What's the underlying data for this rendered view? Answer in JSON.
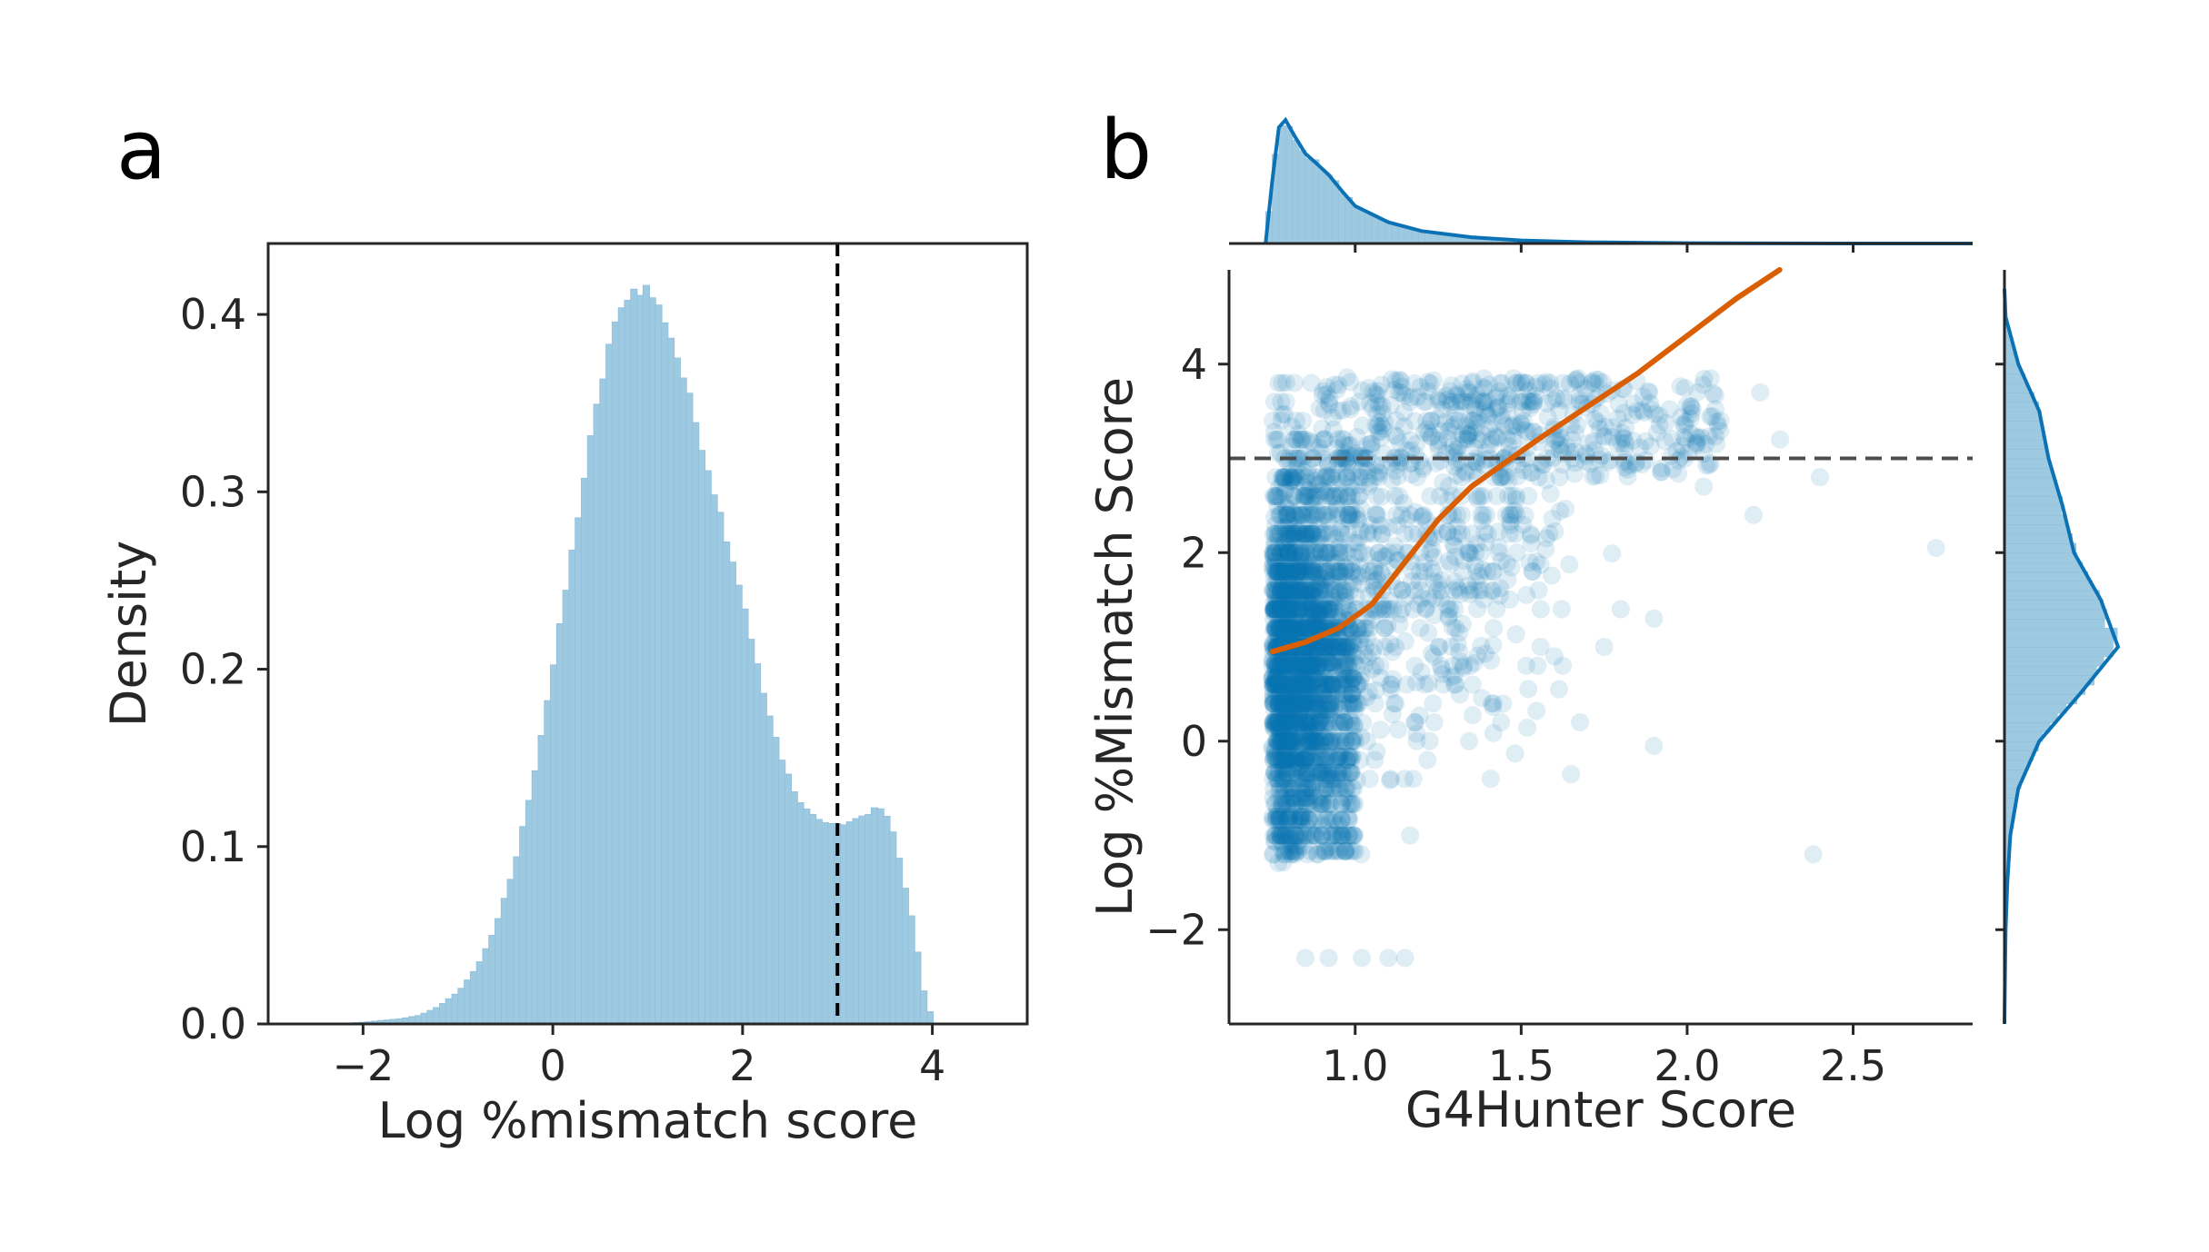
{
  "colors": {
    "hist_fill": "#9ecae1",
    "hist_edge": "#8fbfdc",
    "scatter": "#0b72b5",
    "marginal_line": "#0b72b5",
    "trend_line": "#d95f02",
    "threshold_line_a": "#000000",
    "threshold_line_b": "#4d4d4d",
    "axis": "#262626"
  },
  "panels": {
    "a_label": "a",
    "b_label": "b"
  },
  "chart_data": [
    {
      "id": "a",
      "type": "bar",
      "subtype": "histogram",
      "xlabel": "Log %mismatch score",
      "ylabel": "Density",
      "xlim": [
        -3,
        5
      ],
      "ylim": [
        0,
        0.44
      ],
      "xticks": [
        -2,
        0,
        2,
        4
      ],
      "xtick_labels": [
        "−2",
        "0",
        "2",
        "4"
      ],
      "yticks": [
        0.0,
        0.1,
        0.2,
        0.3,
        0.4
      ],
      "ytick_labels": [
        "0.0",
        "0.1",
        "0.2",
        "0.3",
        "0.4"
      ],
      "grid": false,
      "threshold_x": 3,
      "density_points": [
        [
          -2.3,
          0.0
        ],
        [
          -2.0,
          0.001
        ],
        [
          -1.6,
          0.003
        ],
        [
          -1.4,
          0.005
        ],
        [
          -1.2,
          0.01
        ],
        [
          -1.0,
          0.018
        ],
        [
          -0.8,
          0.032
        ],
        [
          -0.6,
          0.055
        ],
        [
          -0.4,
          0.09
        ],
        [
          -0.2,
          0.14
        ],
        [
          0.0,
          0.2
        ],
        [
          0.2,
          0.265
        ],
        [
          0.4,
          0.33
        ],
        [
          0.6,
          0.385
        ],
        [
          0.8,
          0.413
        ],
        [
          1.0,
          0.415
        ],
        [
          1.2,
          0.395
        ],
        [
          1.4,
          0.36
        ],
        [
          1.6,
          0.32
        ],
        [
          1.8,
          0.28
        ],
        [
          2.0,
          0.24
        ],
        [
          2.2,
          0.19
        ],
        [
          2.4,
          0.15
        ],
        [
          2.6,
          0.125
        ],
        [
          2.8,
          0.115
        ],
        [
          3.0,
          0.112
        ],
        [
          3.2,
          0.115
        ],
        [
          3.4,
          0.122
        ],
        [
          3.5,
          0.12
        ],
        [
          3.6,
          0.105
        ],
        [
          3.8,
          0.055
        ],
        [
          3.9,
          0.02
        ],
        [
          4.0,
          0.002
        ],
        [
          4.05,
          0.0
        ]
      ]
    },
    {
      "id": "b",
      "type": "scatter",
      "xlabel": "G4Hunter Score",
      "ylabel": "Log %Mismatch Score",
      "xlim": [
        0.62,
        2.86
      ],
      "ylim": [
        -3,
        5
      ],
      "xticks": [
        1.0,
        1.5,
        2.0,
        2.5
      ],
      "xtick_labels": [
        "1.0",
        "1.5",
        "2.0",
        "2.5"
      ],
      "yticks": [
        -2,
        0,
        2,
        4
      ],
      "ytick_labels": [
        "−2",
        "0",
        "2",
        "4"
      ],
      "grid": false,
      "threshold_y": 3,
      "trend_line": [
        [
          0.75,
          0.95
        ],
        [
          0.85,
          1.05
        ],
        [
          0.95,
          1.2
        ],
        [
          1.05,
          1.45
        ],
        [
          1.15,
          1.9
        ],
        [
          1.25,
          2.35
        ],
        [
          1.35,
          2.7
        ],
        [
          1.45,
          2.95
        ],
        [
          1.55,
          3.2
        ],
        [
          1.7,
          3.55
        ],
        [
          1.85,
          3.9
        ],
        [
          2.0,
          4.3
        ],
        [
          2.15,
          4.7
        ],
        [
          2.3,
          5.05
        ],
        [
          2.45,
          5.4
        ]
      ],
      "outliers": [
        [
          2.75,
          2.05
        ],
        [
          2.38,
          -1.2
        ],
        [
          1.9,
          -0.05
        ],
        [
          1.65,
          -0.35
        ],
        [
          2.2,
          2.4
        ],
        [
          2.05,
          2.7
        ],
        [
          1.8,
          1.4
        ],
        [
          1.9,
          1.3
        ],
        [
          2.28,
          3.2
        ],
        [
          2.4,
          2.8
        ],
        [
          1.75,
          1.0
        ],
        [
          2.1,
          3.4
        ],
        [
          2.22,
          3.7
        ],
        [
          2.03,
          3.7
        ],
        [
          1.6,
          0.9
        ],
        [
          1.1,
          -2.3
        ],
        [
          1.15,
          -2.3
        ],
        [
          1.02,
          -2.3
        ],
        [
          0.92,
          -2.3
        ],
        [
          0.85,
          -2.3
        ]
      ],
      "top_marginal": {
        "xlim_visible": [
          0.73,
          2.86
        ],
        "density_points": [
          [
            0.73,
            0.0
          ],
          [
            0.75,
            0.5
          ],
          [
            0.77,
            0.93
          ],
          [
            0.79,
            0.99
          ],
          [
            0.82,
            0.85
          ],
          [
            0.85,
            0.72
          ],
          [
            0.88,
            0.65
          ],
          [
            0.92,
            0.55
          ],
          [
            0.96,
            0.42
          ],
          [
            1.0,
            0.3
          ],
          [
            1.1,
            0.17
          ],
          [
            1.2,
            0.1
          ],
          [
            1.35,
            0.05
          ],
          [
            1.5,
            0.025
          ],
          [
            1.7,
            0.01
          ],
          [
            2.0,
            0.003
          ],
          [
            2.5,
            0.0
          ],
          [
            2.86,
            0.0
          ]
        ]
      },
      "right_marginal": {
        "density_points": [
          [
            -3.0,
            0.0
          ],
          [
            -2.5,
            0.005
          ],
          [
            -2.0,
            0.01
          ],
          [
            -1.5,
            0.025
          ],
          [
            -1.0,
            0.05
          ],
          [
            -0.5,
            0.12
          ],
          [
            0.0,
            0.3
          ],
          [
            0.5,
            0.65
          ],
          [
            1.0,
            0.98
          ],
          [
            1.5,
            0.83
          ],
          [
            2.0,
            0.6
          ],
          [
            2.5,
            0.5
          ],
          [
            3.0,
            0.38
          ],
          [
            3.5,
            0.3
          ],
          [
            4.0,
            0.12
          ],
          [
            4.5,
            0.01
          ],
          [
            4.8,
            0.0
          ]
        ]
      }
    }
  ]
}
